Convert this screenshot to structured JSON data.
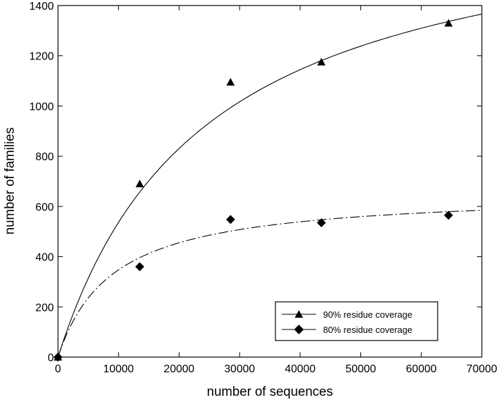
{
  "chart_data": {
    "type": "scatter",
    "title": "",
    "xlabel": "number of sequences",
    "ylabel": "number of families",
    "xlim": [
      0,
      70000
    ],
    "ylim": [
      0,
      1400
    ],
    "xticks": [
      0,
      10000,
      20000,
      30000,
      40000,
      50000,
      60000,
      70000
    ],
    "yticks": [
      0,
      200,
      400,
      600,
      800,
      1000,
      1200,
      1400
    ],
    "xtick_labels": [
      "0",
      "10000",
      "20000",
      "30000",
      "40000",
      "50000",
      "60000",
      "70000"
    ],
    "ytick_labels": [
      "0",
      "200",
      "400",
      "600",
      "800",
      "1000",
      "1200",
      "1400"
    ],
    "grid": false,
    "legend_position": "bottom-right",
    "series": [
      {
        "name": "90% residue coverage",
        "marker": "triangle",
        "line_style": "solid",
        "x": [
          0,
          13500,
          28500,
          43500,
          64500
        ],
        "y": [
          0,
          690,
          1095,
          1175,
          1330
        ],
        "fit": {
          "model": "a*x/(b+x)",
          "a": 1840,
          "b": 24300
        }
      },
      {
        "name": "80% residue coverage",
        "marker": "diamond",
        "line_style": "dash-dot",
        "x": [
          0,
          13500,
          28500,
          43500,
          64500
        ],
        "y": [
          0,
          360,
          548,
          535,
          565
        ],
        "fit": {
          "model": "a*x/(b+x)",
          "a": 660,
          "b": 9000
        }
      }
    ]
  }
}
